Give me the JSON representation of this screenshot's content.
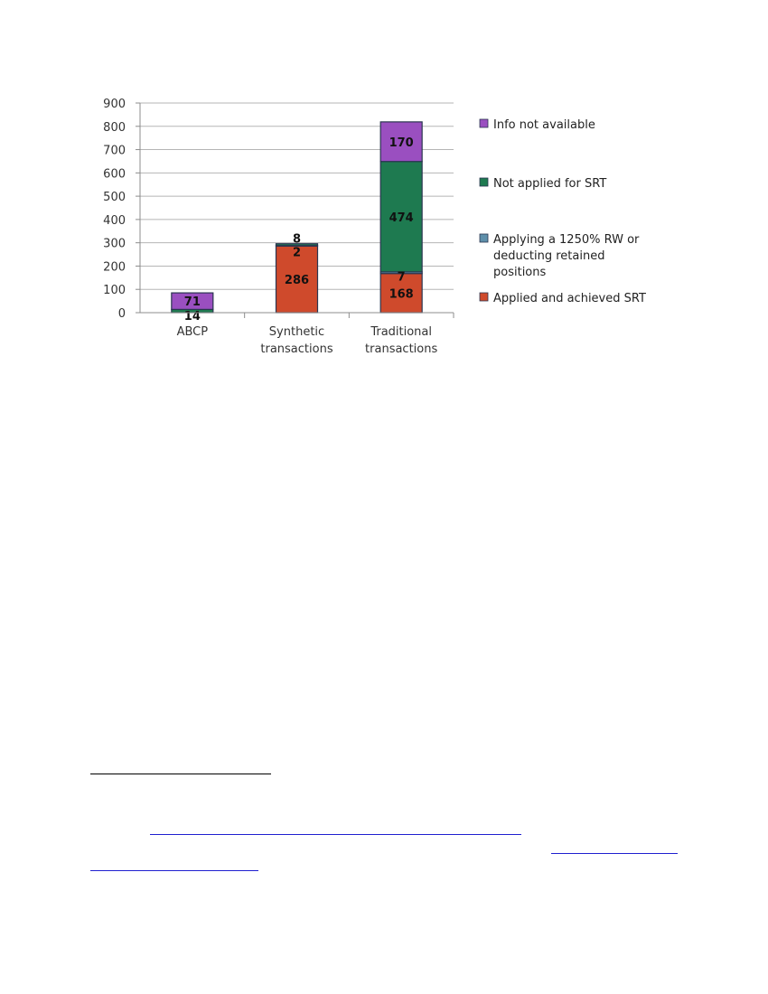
{
  "chart_data": {
    "type": "bar",
    "stacked": true,
    "categories": [
      "ABCP",
      "Synthetic\ntransactions",
      "Traditional\ntransactions"
    ],
    "series": [
      {
        "name": "Applied and achieved SRT",
        "color": "#cf4a2c",
        "values": [
          null,
          286,
          168
        ],
        "labels": [
          "",
          "286",
          "168"
        ]
      },
      {
        "name": "Applying a 1250% RW or deducting retained positions",
        "color": "#5e8faa",
        "values": [
          null,
          2,
          7
        ],
        "labels": [
          "",
          "2",
          "7"
        ]
      },
      {
        "name": "Not applied for SRT",
        "color": "#1e7a50",
        "values": [
          14,
          8,
          474
        ],
        "labels": [
          "14",
          "8",
          "474"
        ]
      },
      {
        "name": "Info not available",
        "color": "#9a4fc0",
        "values": [
          71,
          null,
          170
        ],
        "labels": [
          "71",
          "",
          "170"
        ]
      }
    ],
    "legend_order": [
      3,
      2,
      1,
      0
    ],
    "legend_labels": [
      "Info not available",
      "Not applied for SRT",
      "Applying a 1250% RW or\ndeducting retained\npositions",
      "Applied and achieved SRT"
    ],
    "yticks": [
      0,
      100,
      200,
      300,
      400,
      500,
      600,
      700,
      800,
      900
    ],
    "ylim": [
      0,
      900
    ],
    "grid": true,
    "legend_position": "right"
  }
}
